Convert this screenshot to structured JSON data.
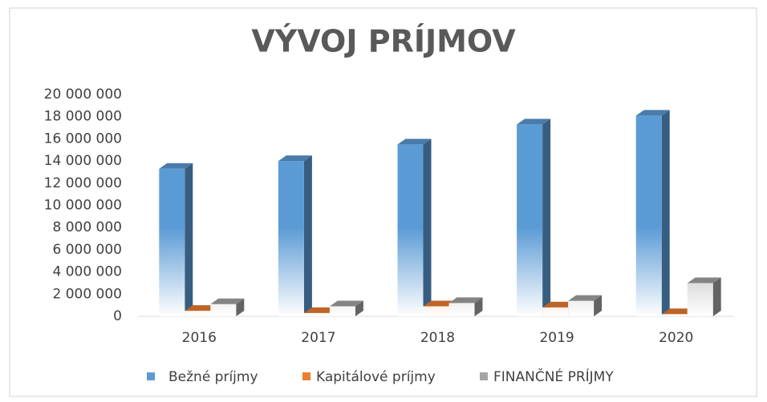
{
  "chart_data": {
    "type": "bar3d",
    "title": "VÝVOJ PRÍJMOV",
    "categories": [
      "2016",
      "2017",
      "2018",
      "2019",
      "2020"
    ],
    "series": [
      {
        "name": "Bežné príjmy",
        "color": "#5b9bd5",
        "values": [
          13300000,
          14000000,
          15500000,
          17300000,
          18100000
        ]
      },
      {
        "name": "Kapitálové príjmy",
        "color": "#ed7d31",
        "values": [
          500000,
          300000,
          900000,
          800000,
          200000
        ]
      },
      {
        "name": "FINANČNÉ PRÍJMY",
        "color": "#a5a5a5",
        "values": [
          1100000,
          900000,
          1200000,
          1400000,
          3000000
        ]
      }
    ],
    "ylim": [
      0,
      20000000
    ],
    "yticks": [
      0,
      {
        "value": 2000000,
        "label": "2 000 000"
      },
      {
        "value": 4000000,
        "label": "4 000 000"
      },
      {
        "value": 6000000,
        "label": "6 000 000"
      },
      {
        "value": 8000000,
        "label": "8 000 000"
      },
      {
        "value": 10000000,
        "label": "10 000 000"
      },
      {
        "value": 12000000,
        "label": "12 000 000"
      },
      {
        "value": 14000000,
        "label": "14 000 000"
      },
      {
        "value": 16000000,
        "label": "16 000 000"
      },
      {
        "value": 18000000,
        "label": "18 000 000"
      },
      {
        "value": 20000000,
        "label": "20 000 000"
      }
    ],
    "grid": false,
    "legend": "bottom"
  }
}
